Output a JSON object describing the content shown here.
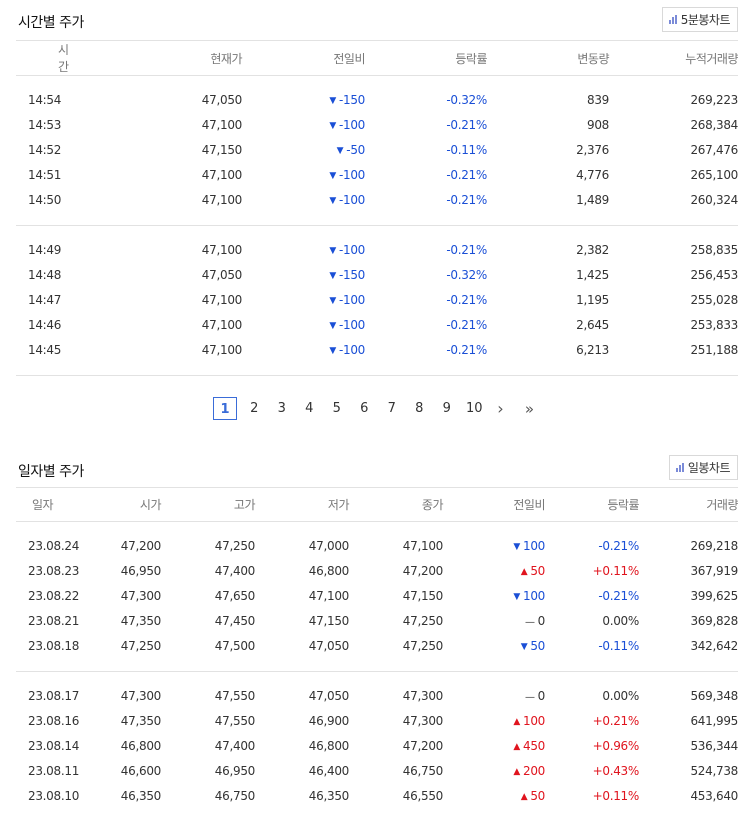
{
  "time_section": {
    "title": "시간별 주가",
    "chart_button": "5분봉차트",
    "headers": [
      "시간",
      "현재가",
      "전일비",
      "등락률",
      "변동량",
      "누적거래량"
    ],
    "groups": [
      [
        {
          "time": "14:54",
          "price": "47,050",
          "change_dir": "down",
          "change": "-150",
          "rate": "-0.32%",
          "volume_change": "839",
          "cum_volume": "269,223"
        },
        {
          "time": "14:53",
          "price": "47,100",
          "change_dir": "down",
          "change": "-100",
          "rate": "-0.21%",
          "volume_change": "908",
          "cum_volume": "268,384"
        },
        {
          "time": "14:52",
          "price": "47,150",
          "change_dir": "down",
          "change": "-50",
          "rate": "-0.11%",
          "volume_change": "2,376",
          "cum_volume": "267,476"
        },
        {
          "time": "14:51",
          "price": "47,100",
          "change_dir": "down",
          "change": "-100",
          "rate": "-0.21%",
          "volume_change": "4,776",
          "cum_volume": "265,100"
        },
        {
          "time": "14:50",
          "price": "47,100",
          "change_dir": "down",
          "change": "-100",
          "rate": "-0.21%",
          "volume_change": "1,489",
          "cum_volume": "260,324"
        }
      ],
      [
        {
          "time": "14:49",
          "price": "47,100",
          "change_dir": "down",
          "change": "-100",
          "rate": "-0.21%",
          "volume_change": "2,382",
          "cum_volume": "258,835"
        },
        {
          "time": "14:48",
          "price": "47,050",
          "change_dir": "down",
          "change": "-150",
          "rate": "-0.32%",
          "volume_change": "1,425",
          "cum_volume": "256,453"
        },
        {
          "time": "14:47",
          "price": "47,100",
          "change_dir": "down",
          "change": "-100",
          "rate": "-0.21%",
          "volume_change": "1,195",
          "cum_volume": "255,028"
        },
        {
          "time": "14:46",
          "price": "47,100",
          "change_dir": "down",
          "change": "-100",
          "rate": "-0.21%",
          "volume_change": "2,645",
          "cum_volume": "253,833"
        },
        {
          "time": "14:45",
          "price": "47,100",
          "change_dir": "down",
          "change": "-100",
          "rate": "-0.21%",
          "volume_change": "6,213",
          "cum_volume": "251,188"
        }
      ]
    ]
  },
  "pagination": {
    "pages": [
      "1",
      "2",
      "3",
      "4",
      "5",
      "6",
      "7",
      "8",
      "9",
      "10"
    ],
    "current": "1",
    "next_icon": "chevron-right-icon",
    "last_icon": "double-chevron-right-icon"
  },
  "daily_section": {
    "title": "일자별 주가",
    "chart_button": "일봉차트",
    "headers": [
      "일자",
      "시가",
      "고가",
      "저가",
      "종가",
      "전일비",
      "등락률",
      "거래량"
    ],
    "groups": [
      [
        {
          "date": "23.08.24",
          "open": "47,200",
          "high": "47,250",
          "low": "47,000",
          "close": "47,100",
          "change_dir": "down",
          "change": "100",
          "rate": "-0.21%",
          "volume": "269,218"
        },
        {
          "date": "23.08.23",
          "open": "46,950",
          "high": "47,400",
          "low": "46,800",
          "close": "47,200",
          "change_dir": "up",
          "change": "50",
          "rate": "+0.11%",
          "volume": "367,919"
        },
        {
          "date": "23.08.22",
          "open": "47,300",
          "high": "47,650",
          "low": "47,100",
          "close": "47,150",
          "change_dir": "down",
          "change": "100",
          "rate": "-0.21%",
          "volume": "399,625"
        },
        {
          "date": "23.08.21",
          "open": "47,350",
          "high": "47,450",
          "low": "47,150",
          "close": "47,250",
          "change_dir": "flat",
          "change": "0",
          "rate": "0.00%",
          "volume": "369,828"
        },
        {
          "date": "23.08.18",
          "open": "47,250",
          "high": "47,500",
          "low": "47,050",
          "close": "47,250",
          "change_dir": "down",
          "change": "50",
          "rate": "-0.11%",
          "volume": "342,642"
        }
      ],
      [
        {
          "date": "23.08.17",
          "open": "47,300",
          "high": "47,550",
          "low": "47,050",
          "close": "47,300",
          "change_dir": "flat",
          "change": "0",
          "rate": "0.00%",
          "volume": "569,348"
        },
        {
          "date": "23.08.16",
          "open": "47,350",
          "high": "47,550",
          "low": "46,900",
          "close": "47,300",
          "change_dir": "up",
          "change": "100",
          "rate": "+0.21%",
          "volume": "641,995"
        },
        {
          "date": "23.08.14",
          "open": "46,800",
          "high": "47,400",
          "low": "46,800",
          "close": "47,200",
          "change_dir": "up",
          "change": "450",
          "rate": "+0.96%",
          "volume": "536,344"
        },
        {
          "date": "23.08.11",
          "open": "46,600",
          "high": "46,950",
          "low": "46,400",
          "close": "46,750",
          "change_dir": "up",
          "change": "200",
          "rate": "+0.43%",
          "volume": "524,738"
        },
        {
          "date": "23.08.10",
          "open": "46,350",
          "high": "46,750",
          "low": "46,350",
          "close": "46,550",
          "change_dir": "up",
          "change": "50",
          "rate": "+0.11%",
          "volume": "453,640"
        }
      ]
    ]
  },
  "colors": {
    "down": "#1a4fd6",
    "up": "#e0141e",
    "active_page": "#3a6cd8"
  },
  "icons": {
    "chart_button_icon": "bar-chart-icon",
    "down": "triangle-down-icon",
    "up": "triangle-up-icon",
    "flat": "dash-icon"
  }
}
